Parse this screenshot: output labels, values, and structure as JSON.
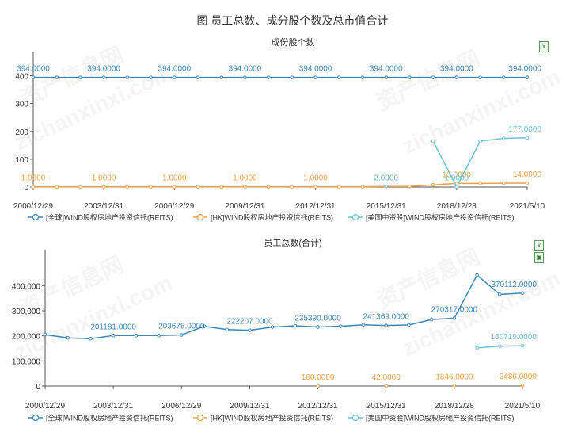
{
  "page": {
    "title": "图 员工总数、成分股个数及总市值合计"
  },
  "watermark": [
    "资产信息网",
    "zichanxinxi.com"
  ],
  "chart_data": [
    {
      "type": "line",
      "title": "成份股个数",
      "x": [
        "2000/12/29",
        "2001/12/31",
        "2002/12/31",
        "2003/12/31",
        "2004/12/31",
        "2005/12/30",
        "2006/12/29",
        "2007/12/28",
        "2008/12/31",
        "2009/12/31",
        "2010/12/31",
        "2011/12/30",
        "2012/12/31",
        "2013/12/31",
        "2014/12/31",
        "2015/12/31",
        "2016/12/30",
        "2017/12/29",
        "2018/12/28",
        "2019/12/31",
        "2020/12/31",
        "2021/5/10"
      ],
      "x_tick_labels": [
        "2000/12/29",
        "2003/12/31",
        "2006/12/29",
        "2009/12/31",
        "2012/12/31",
        "2015/12/31",
        "2018/12/28",
        "2021/5/10"
      ],
      "y_ticks": [
        "0",
        "100",
        "200",
        "300",
        "400"
      ],
      "ylim": [
        0,
        430
      ],
      "series": [
        {
          "name": "[全球]WIND股权房地产投资信托(REITS)",
          "color": "#3a87b8",
          "values": [
            394,
            394,
            394,
            394,
            394,
            394,
            394,
            394,
            394,
            394,
            394,
            394,
            394,
            394,
            394,
            394,
            394,
            394,
            394,
            394,
            394,
            394
          ]
        },
        {
          "name": "[HK]WIND股权房地产投资信托(REITS)",
          "color": "#f0a04a",
          "values": [
            1,
            1,
            1,
            1,
            1,
            1,
            1,
            1,
            1,
            1,
            1,
            1,
            1,
            1,
            1,
            2,
            2,
            8,
            13,
            13,
            14,
            14
          ]
        },
        {
          "name": "[美国中资股]WIND股权房地产投资信托(REITS)",
          "color": "#6cc4d6",
          "values": [
            null,
            null,
            null,
            null,
            null,
            null,
            null,
            null,
            null,
            null,
            null,
            null,
            null,
            null,
            null,
            2,
            null,
            165,
            1,
            165,
            175,
            177
          ]
        }
      ],
      "data_labels": [
        {
          "series": 0,
          "i": 0,
          "text": "394.0000"
        },
        {
          "series": 0,
          "i": 3,
          "text": "394.0000"
        },
        {
          "series": 0,
          "i": 6,
          "text": "394.0000"
        },
        {
          "series": 0,
          "i": 9,
          "text": "394.0000"
        },
        {
          "series": 0,
          "i": 12,
          "text": "394.0000"
        },
        {
          "series": 0,
          "i": 15,
          "text": "394.0000"
        },
        {
          "series": 0,
          "i": 18,
          "text": "394.0000"
        },
        {
          "series": 0,
          "i": 21,
          "text": "394.0000"
        },
        {
          "series": 1,
          "i": 0,
          "text": "1.0000"
        },
        {
          "series": 1,
          "i": 3,
          "text": "1.0000"
        },
        {
          "series": 1,
          "i": 6,
          "text": "1.0000"
        },
        {
          "series": 1,
          "i": 9,
          "text": "1.0000"
        },
        {
          "series": 1,
          "i": 12,
          "text": "1.0000"
        },
        {
          "series": 1,
          "i": 15,
          "text": "2.0000"
        },
        {
          "series": 1,
          "i": 18,
          "text": "13.0000"
        },
        {
          "series": 1,
          "i": 21,
          "text": "14.0000"
        },
        {
          "series": 2,
          "i": 15,
          "text": "2.0000"
        },
        {
          "series": 2,
          "i": 18,
          "text": "1.0000"
        },
        {
          "series": 2,
          "i": 21,
          "text": "177.0000"
        }
      ]
    },
    {
      "type": "line",
      "title": "员工总数(合计)",
      "x": [
        "2000/12/29",
        "2001/12/31",
        "2002/12/31",
        "2003/12/31",
        "2004/12/31",
        "2005/12/30",
        "2006/12/29",
        "2007/12/28",
        "2008/12/31",
        "2009/12/31",
        "2010/12/31",
        "2011/12/30",
        "2012/12/31",
        "2013/12/31",
        "2014/12/31",
        "2015/12/31",
        "2016/12/30",
        "2017/12/29",
        "2018/12/28",
        "2019/12/31",
        "2020/12/31",
        "2021/5/10"
      ],
      "x_tick_labels": [
        "2000/12/29",
        "2003/12/31",
        "2006/12/29",
        "2009/12/31",
        "2012/12/31",
        "2015/12/31",
        "2018/12/28",
        "2021/5/10"
      ],
      "y_ticks": [
        "0",
        "100,000",
        "200,000",
        "300,000",
        "400,000"
      ],
      "ylim": [
        0,
        480000
      ],
      "series": [
        {
          "name": "[全球]WIND股权房地产投资信托(REITS)",
          "color": "#3a87b8",
          "values": [
            205000,
            192000,
            189000,
            201181,
            201000,
            201000,
            203678,
            238000,
            225000,
            222207,
            235000,
            240000,
            235390,
            238000,
            244000,
            241369,
            243000,
            265000,
            270317,
            442000,
            365000,
            370112
          ]
        },
        {
          "name": "[HK]WIND股权房地产投资信托(REITS)",
          "color": "#f0a04a",
          "values": [
            null,
            null,
            null,
            null,
            null,
            null,
            null,
            null,
            null,
            null,
            null,
            null,
            160,
            null,
            null,
            42,
            null,
            null,
            1846,
            null,
            null,
            2486
          ]
        },
        {
          "name": "[美国中资股]WIND股权房地产投资信托(REITS)",
          "color": "#6cc4d6",
          "values": [
            null,
            null,
            null,
            null,
            null,
            null,
            null,
            null,
            null,
            null,
            null,
            null,
            null,
            null,
            null,
            null,
            null,
            null,
            null,
            152000,
            159000,
            160719
          ]
        }
      ],
      "data_labels": [
        {
          "series": 0,
          "i": 3,
          "text": "201181.0000"
        },
        {
          "series": 0,
          "i": 6,
          "text": "203678.0000"
        },
        {
          "series": 0,
          "i": 9,
          "text": "222207.0000"
        },
        {
          "series": 0,
          "i": 12,
          "text": "235390.0000"
        },
        {
          "series": 0,
          "i": 15,
          "text": "241369.0000"
        },
        {
          "series": 0,
          "i": 18,
          "text": "270317.0000"
        },
        {
          "series": 0,
          "i": 21,
          "text": "370112.0000"
        },
        {
          "series": 1,
          "i": 12,
          "text": "160.0000"
        },
        {
          "series": 1,
          "i": 15,
          "text": "42.0000"
        },
        {
          "series": 1,
          "i": 18,
          "text": "1846.0000"
        },
        {
          "series": 1,
          "i": 21,
          "text": "2486.0000"
        },
        {
          "series": 2,
          "i": 21,
          "text": "160719.0000"
        }
      ]
    }
  ]
}
